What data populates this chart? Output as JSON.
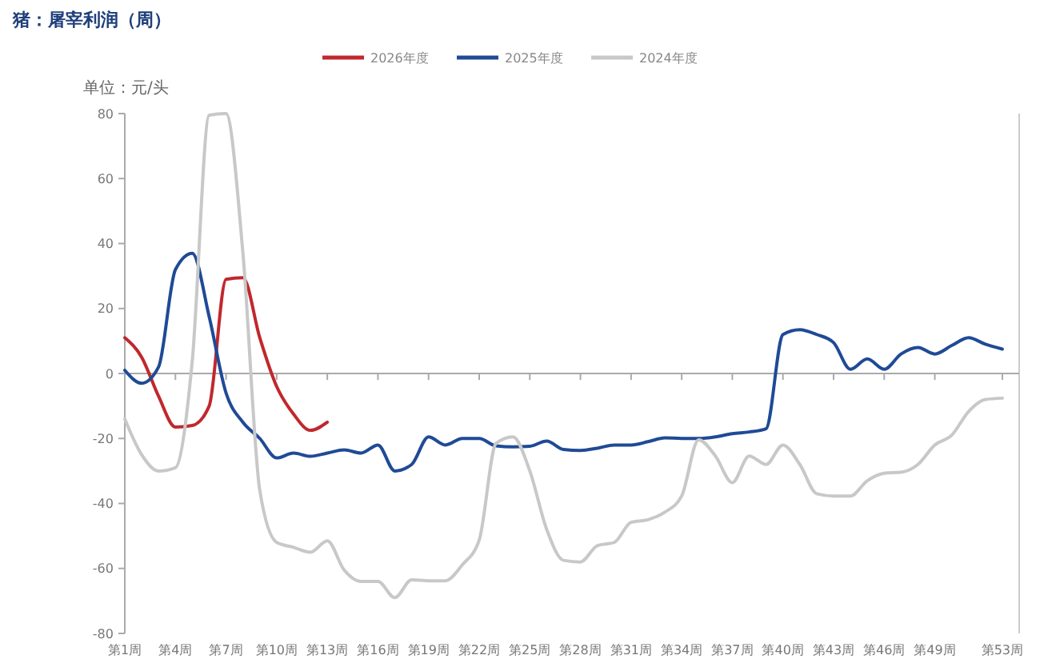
{
  "chart_data": {
    "type": "line",
    "title": "猪：屠宰利润（周）",
    "ylabel": "单位：元/头",
    "categories": [
      "第1周",
      null,
      null,
      "第4周",
      null,
      null,
      "第7周",
      null,
      null,
      "第10周",
      null,
      null,
      "第13周",
      null,
      null,
      "第16周",
      null,
      null,
      "第19周",
      null,
      null,
      "第22周",
      null,
      null,
      "第25周",
      null,
      null,
      "第28周",
      null,
      null,
      "第31周",
      null,
      null,
      "第34周",
      null,
      null,
      "第37周",
      null,
      null,
      "第40周",
      null,
      null,
      "第43周",
      null,
      null,
      "第46周",
      null,
      null,
      "第49周",
      null,
      null,
      null,
      "第53周"
    ],
    "ylim": [
      -80,
      80
    ],
    "yticks": [
      -80,
      -60,
      -40,
      -20,
      0,
      20,
      40,
      60,
      80
    ],
    "legend": "top",
    "marker": "none",
    "line_style": "solid",
    "series": [
      {
        "name": "2026年度",
        "color": "#c0282d",
        "values": [
          11,
          5,
          -7,
          -16.5,
          -16,
          -10,
          29,
          29.5,
          11,
          -4,
          -12.5,
          -17.5,
          -15,
          null,
          null,
          null,
          null,
          null,
          null,
          null,
          null,
          null,
          null,
          null,
          null,
          null,
          null,
          null,
          null,
          null,
          null,
          null,
          null,
          null,
          null,
          null,
          null,
          null,
          null,
          null,
          null,
          null,
          null,
          null,
          null,
          null,
          null,
          null,
          null,
          null,
          null,
          null,
          null
        ]
      },
      {
        "name": "2025年度",
        "color": "#1f4a96",
        "values": [
          1,
          -3,
          2,
          32,
          37,
          17.5,
          -6,
          -15,
          -20,
          -26,
          -24.5,
          -25.5,
          -24.5,
          -23.5,
          -24.5,
          -22,
          -30,
          -28,
          -19.5,
          -22,
          -20,
          -20,
          -22.3,
          -22.6,
          -22.4,
          -20.8,
          -23.4,
          -23.7,
          -23,
          -22,
          -22,
          -21,
          -19.8,
          -20,
          -20,
          -19.5,
          -18.5,
          -18,
          -17,
          12,
          13.5,
          12,
          9.5,
          1.3,
          4.5,
          1.3,
          6,
          8,
          6,
          8.6,
          11,
          9,
          7.5
        ]
      },
      {
        "name": "2024年度",
        "color": "#c8c8c8",
        "values": [
          -14,
          -25,
          -30,
          -29,
          4,
          79.5,
          80,
          37,
          -36,
          -52,
          -53.5,
          -55,
          -51.5,
          -60.5,
          -64,
          -64,
          -69,
          -63.5,
          -63.8,
          -63.8,
          -58.9,
          -51.3,
          -21.5,
          -19.5,
          -30,
          -48,
          -57.5,
          -58,
          -53,
          -52,
          -45.8,
          -45,
          -42.7,
          -37.7,
          -20.4,
          -25.4,
          -33.6,
          -25.4,
          -28,
          -22,
          -28,
          -37,
          -37.7,
          -37.7,
          -33,
          -30.7,
          -30.4,
          -28,
          -22,
          -19,
          -11.7,
          -8,
          -7.6
        ]
      }
    ]
  }
}
